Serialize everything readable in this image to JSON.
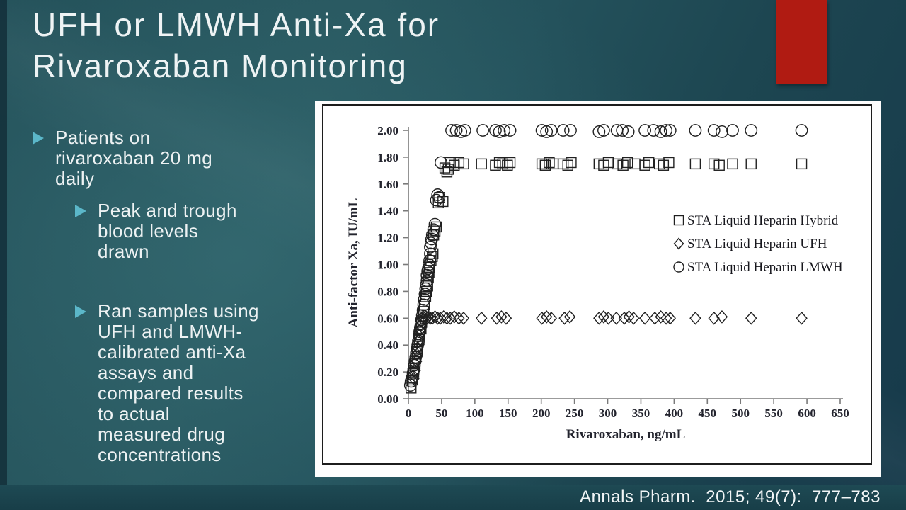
{
  "slide": {
    "title": "UFH or LMWH Anti-Xa for\nRivaroxaban Monitoring",
    "citation": "Annals Pharm.  2015; 49(7):  777–783",
    "bullets": [
      {
        "level": 1,
        "lines": "Patients on\nrivaroxaban 20 mg\ndaily"
      },
      {
        "level": 2,
        "lines": "Peak and trough\nblood levels\ndrawn"
      },
      {
        "level": 2,
        "lines": "Ran samples using\nUFH and LMWH-\ncalibrated anti-Xa\nassays and\ncompared results\nto actual\nmeasured drug\nconcentrations"
      }
    ],
    "colors": {
      "accent_red": "#b01b12",
      "background_teal": "#24525c",
      "bullet_triangle": "#5bb7c9",
      "text": "#edf2f3",
      "bottom_bar": "#1d4751"
    },
    "icons": {
      "bullet_icon": "triangle-right"
    }
  },
  "chart_data": {
    "type": "scatter",
    "title": "",
    "xlabel": "Rivaroxaban, ng/mL",
    "ylabel": "Anti-factor Xa, IU/mL",
    "xlim": [
      0,
      650
    ],
    "ylim": [
      0.0,
      2.0
    ],
    "x_ticks": [
      0,
      50,
      100,
      150,
      200,
      250,
      300,
      350,
      400,
      450,
      500,
      550,
      600,
      650
    ],
    "y_tick_labels": [
      "0.00",
      "0.20",
      "0.40",
      "0.60",
      "0.80",
      "1.00",
      "1.20",
      "1.40",
      "1.60",
      "1.80",
      "2.00"
    ],
    "grid": false,
    "legend_position": "inside-upper-right",
    "series": [
      {
        "name": "STA Liquid Heparin Hybrid",
        "marker": "square",
        "points": [
          [
            4,
            0.08
          ],
          [
            6,
            0.14
          ],
          [
            8,
            0.2
          ],
          [
            10,
            0.26
          ],
          [
            11,
            0.3
          ],
          [
            13,
            0.35
          ],
          [
            14,
            0.39
          ],
          [
            16,
            0.44
          ],
          [
            17,
            0.48
          ],
          [
            19,
            0.52
          ],
          [
            20,
            0.57
          ],
          [
            22,
            0.61
          ],
          [
            23,
            0.65
          ],
          [
            24,
            0.7
          ],
          [
            26,
            0.76
          ],
          [
            27,
            0.8
          ],
          [
            29,
            0.84
          ],
          [
            30,
            0.9
          ],
          [
            31,
            0.94
          ],
          [
            32,
            0.98
          ],
          [
            34,
            1.03
          ],
          [
            36,
            1.06
          ],
          [
            37,
            1.08
          ],
          [
            38,
            1.22
          ],
          [
            40,
            1.25
          ],
          [
            42,
            1.28
          ],
          [
            45,
            1.46
          ],
          [
            47,
            1.5
          ],
          [
            52,
            1.47
          ],
          [
            55,
            1.72
          ],
          [
            58,
            1.69
          ],
          [
            60,
            1.71
          ],
          [
            63,
            1.76
          ],
          [
            69,
            1.74
          ],
          [
            76,
            1.76
          ],
          [
            83,
            1.75
          ],
          [
            110,
            1.75
          ],
          [
            131,
            1.74
          ],
          [
            137,
            1.76
          ],
          [
            142,
            1.75
          ],
          [
            149,
            1.74
          ],
          [
            153,
            1.76
          ],
          [
            201,
            1.75
          ],
          [
            206,
            1.74
          ],
          [
            212,
            1.76
          ],
          [
            218,
            1.75
          ],
          [
            233,
            1.75
          ],
          [
            240,
            1.74
          ],
          [
            245,
            1.76
          ],
          [
            287,
            1.75
          ],
          [
            294,
            1.74
          ],
          [
            301,
            1.76
          ],
          [
            314,
            1.75
          ],
          [
            323,
            1.74
          ],
          [
            330,
            1.76
          ],
          [
            341,
            1.75
          ],
          [
            356,
            1.74
          ],
          [
            362,
            1.76
          ],
          [
            378,
            1.75
          ],
          [
            384,
            1.74
          ],
          [
            392,
            1.76
          ],
          [
            432,
            1.75
          ],
          [
            460,
            1.75
          ],
          [
            468,
            1.74
          ],
          [
            488,
            1.75
          ],
          [
            516,
            1.75
          ],
          [
            592,
            1.75
          ]
        ]
      },
      {
        "name": "STA Liquid Heparin UFH",
        "marker": "diamond",
        "points": [
          [
            8,
            0.15
          ],
          [
            10,
            0.21
          ],
          [
            12,
            0.28
          ],
          [
            13,
            0.33
          ],
          [
            14,
            0.38
          ],
          [
            15,
            0.43
          ],
          [
            16,
            0.47
          ],
          [
            17,
            0.51
          ],
          [
            18,
            0.55
          ],
          [
            19,
            0.58
          ],
          [
            20,
            0.6
          ],
          [
            22,
            0.61
          ],
          [
            24,
            0.6
          ],
          [
            26,
            0.59
          ],
          [
            28,
            0.6
          ],
          [
            30,
            0.61
          ],
          [
            33,
            0.6
          ],
          [
            36,
            0.6
          ],
          [
            40,
            0.61
          ],
          [
            44,
            0.6
          ],
          [
            48,
            0.6
          ],
          [
            53,
            0.61
          ],
          [
            58,
            0.6
          ],
          [
            63,
            0.6
          ],
          [
            69,
            0.61
          ],
          [
            76,
            0.6
          ],
          [
            83,
            0.6
          ],
          [
            110,
            0.6
          ],
          [
            133,
            0.6
          ],
          [
            140,
            0.61
          ],
          [
            147,
            0.6
          ],
          [
            201,
            0.6
          ],
          [
            208,
            0.61
          ],
          [
            215,
            0.6
          ],
          [
            235,
            0.6
          ],
          [
            243,
            0.61
          ],
          [
            287,
            0.6
          ],
          [
            294,
            0.61
          ],
          [
            301,
            0.6
          ],
          [
            313,
            0.6
          ],
          [
            325,
            0.6
          ],
          [
            332,
            0.61
          ],
          [
            339,
            0.6
          ],
          [
            356,
            0.6
          ],
          [
            371,
            0.6
          ],
          [
            380,
            0.61
          ],
          [
            388,
            0.6
          ],
          [
            394,
            0.6
          ],
          [
            432,
            0.6
          ],
          [
            460,
            0.6
          ],
          [
            472,
            0.61
          ],
          [
            516,
            0.6
          ],
          [
            592,
            0.6
          ]
        ]
      },
      {
        "name": "STA Liquid Heparin LMWH",
        "marker": "circle",
        "points": [
          [
            3,
            0.1
          ],
          [
            4,
            0.13
          ],
          [
            6,
            0.16
          ],
          [
            7,
            0.19
          ],
          [
            8,
            0.22
          ],
          [
            9,
            0.25
          ],
          [
            10,
            0.28
          ],
          [
            11,
            0.31
          ],
          [
            12,
            0.34
          ],
          [
            13,
            0.37
          ],
          [
            14,
            0.4
          ],
          [
            15,
            0.43
          ],
          [
            16,
            0.47
          ],
          [
            17,
            0.5
          ],
          [
            18,
            0.53
          ],
          [
            19,
            0.56
          ],
          [
            20,
            0.59
          ],
          [
            21,
            0.62
          ],
          [
            22,
            0.66
          ],
          [
            23,
            0.7
          ],
          [
            24,
            0.74
          ],
          [
            25,
            0.78
          ],
          [
            26,
            0.82
          ],
          [
            27,
            0.85
          ],
          [
            28,
            0.88
          ],
          [
            28,
            0.92
          ],
          [
            29,
            0.95
          ],
          [
            30,
            0.97
          ],
          [
            31,
            1.0
          ],
          [
            32,
            1.03
          ],
          [
            33,
            1.08
          ],
          [
            33,
            1.13
          ],
          [
            34,
            1.16
          ],
          [
            35,
            1.19
          ],
          [
            36,
            1.22
          ],
          [
            38,
            1.26
          ],
          [
            40,
            1.3
          ],
          [
            42,
            1.48
          ],
          [
            44,
            1.52
          ],
          [
            46,
            1.5
          ],
          [
            49,
            1.76
          ],
          [
            65,
            2.0
          ],
          [
            72,
            2.0
          ],
          [
            79,
            1.99
          ],
          [
            85,
            2.0
          ],
          [
            112,
            2.0
          ],
          [
            131,
            2.0
          ],
          [
            137,
            1.99
          ],
          [
            144,
            2.0
          ],
          [
            153,
            2.0
          ],
          [
            201,
            2.0
          ],
          [
            208,
            1.99
          ],
          [
            215,
            2.0
          ],
          [
            233,
            2.0
          ],
          [
            244,
            2.0
          ],
          [
            287,
            1.99
          ],
          [
            294,
            2.0
          ],
          [
            314,
            2.0
          ],
          [
            322,
            2.0
          ],
          [
            331,
            1.99
          ],
          [
            356,
            2.0
          ],
          [
            369,
            2.0
          ],
          [
            380,
            1.99
          ],
          [
            388,
            2.0
          ],
          [
            394,
            2.0
          ],
          [
            432,
            2.0
          ],
          [
            460,
            2.0
          ],
          [
            472,
            1.99
          ],
          [
            488,
            2.0
          ],
          [
            516,
            2.0
          ],
          [
            592,
            2.0
          ]
        ]
      }
    ]
  }
}
